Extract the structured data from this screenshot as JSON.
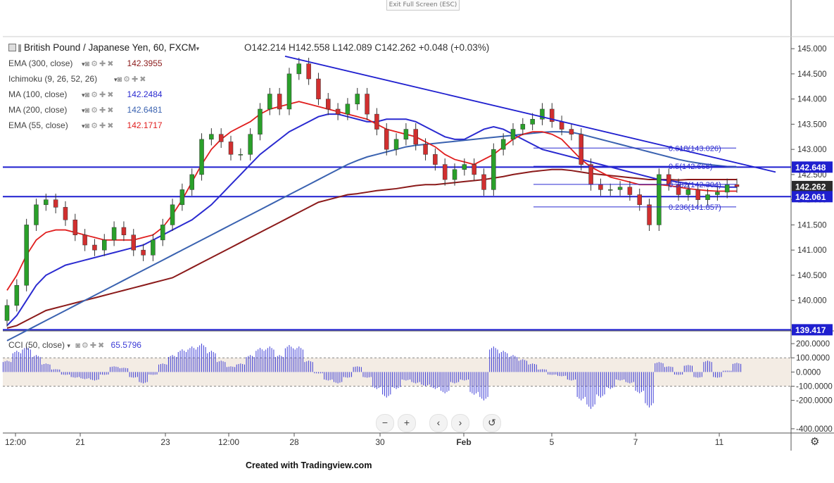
{
  "window": {
    "exit_fullscreen_label": "Exit Full Screen (ESC)"
  },
  "header": {
    "symbol": "British Pound / Japanese Yen, 60, FXCM",
    "ohlc": "O142.214  H142.558  L142.089  C142.262  +0.048 (+0.03%)"
  },
  "indicators": [
    {
      "name": "EMA (300, close)",
      "value": "142.3955",
      "color": "#8b1a1a"
    },
    {
      "name": "Ichimoku (9, 26, 52, 26)",
      "value": "",
      "color": "#999999"
    },
    {
      "name": "MA (100, close)",
      "value": "142.2484",
      "color": "#2a2ad0"
    },
    {
      "name": "MA (200, close)",
      "value": "142.6481",
      "color": "#3a62b0"
    },
    {
      "name": "EMA (55, close)",
      "value": "142.1717",
      "color": "#e01e1e"
    }
  ],
  "cci_indicator": {
    "name": "CCI (50, close)",
    "value": "65.5796",
    "color": "#3b3bd6"
  },
  "chart_data": {
    "type": "candlestick",
    "symbol": "GBPJPY",
    "timeframe": "60",
    "x_labels": [
      "12:00",
      "21",
      "23",
      "12:00",
      "28",
      "30",
      "Feb",
      "5",
      "7",
      "11"
    ],
    "y_ticks": [
      "145.000",
      "144.500",
      "144.000",
      "143.500",
      "143.000",
      "142.500",
      "142.000",
      "141.500",
      "141.000",
      "140.500",
      "140.000"
    ],
    "ylim": [
      139.45,
      145.1
    ],
    "price_labels": [
      {
        "text": "142.648",
        "value": 142.648,
        "color": "#1f1fcf"
      },
      {
        "text": "142.262",
        "value": 142.262,
        "color": "#2c2c2c"
      },
      {
        "text": "142.061",
        "value": 142.061,
        "color": "#1f1fcf"
      },
      {
        "text": "139.417",
        "value": 139.417,
        "color": "#1f1fcf"
      }
    ],
    "horizontal_lines": [
      142.648,
      142.061,
      139.417
    ],
    "fibonacci": [
      {
        "label": "0.618(143.026)",
        "value": 143.026
      },
      {
        "label": "0.5(142.665)",
        "value": 142.665
      },
      {
        "label": "0.382(142.304)",
        "value": 142.304
      },
      {
        "label": "0.236(141.857)",
        "value": 141.857
      }
    ],
    "trendline": {
      "from_price": 144.85,
      "to_price": 142.55
    },
    "close_series": [
      139.9,
      140.3,
      141.5,
      141.9,
      142.0,
      141.85,
      141.6,
      141.3,
      141.1,
      141.0,
      141.2,
      141.45,
      141.3,
      141.0,
      140.9,
      141.2,
      141.5,
      141.9,
      142.2,
      142.5,
      143.2,
      143.3,
      143.15,
      142.9,
      142.9,
      143.3,
      143.8,
      144.1,
      143.8,
      144.5,
      144.7,
      144.4,
      144.0,
      143.8,
      143.7,
      143.9,
      144.1,
      143.7,
      143.4,
      143.0,
      143.2,
      143.4,
      143.1,
      142.9,
      142.7,
      142.4,
      142.6,
      142.7,
      142.5,
      142.2,
      143.0,
      143.2,
      143.4,
      143.5,
      143.6,
      143.8,
      143.55,
      143.4,
      143.3,
      142.7,
      142.3,
      142.2,
      142.2,
      142.25,
      142.1,
      141.9,
      141.5,
      142.5,
      142.3,
      142.1,
      142.2,
      142.0,
      142.1,
      142.15,
      142.3,
      142.26
    ],
    "ema55": [
      140.2,
      140.5,
      140.9,
      141.2,
      141.35,
      141.4,
      141.4,
      141.35,
      141.3,
      141.25,
      141.2,
      141.2,
      141.2,
      141.2,
      141.25,
      141.3,
      141.45,
      141.7,
      142.0,
      142.35,
      142.7,
      143.0,
      143.2,
      143.35,
      143.45,
      143.55,
      143.7,
      143.8,
      143.85,
      143.9,
      143.95,
      143.9,
      143.85,
      143.8,
      143.75,
      143.7,
      143.65,
      143.6,
      143.5,
      143.4,
      143.35,
      143.3,
      143.25,
      143.15,
      143.05,
      142.9,
      142.8,
      142.75,
      142.7,
      142.8,
      142.9,
      143.05,
      143.2,
      143.3,
      143.35,
      143.35,
      143.3,
      143.2,
      143.0,
      142.8,
      142.65,
      142.55,
      142.45,
      142.4,
      142.35,
      142.3,
      142.3,
      142.3,
      142.28,
      142.25,
      142.22,
      142.2,
      142.18,
      142.17,
      142.17,
      142.17
    ],
    "ma100": [
      139.5,
      139.7,
      140.0,
      140.3,
      140.5,
      140.6,
      140.7,
      140.75,
      140.8,
      140.85,
      140.9,
      140.95,
      141.0,
      141.05,
      141.1,
      141.2,
      141.3,
      141.4,
      141.5,
      141.6,
      141.75,
      141.9,
      142.1,
      142.3,
      142.5,
      142.7,
      142.9,
      143.05,
      143.2,
      143.35,
      143.45,
      143.55,
      143.65,
      143.7,
      143.7,
      143.65,
      143.6,
      143.55,
      143.55,
      143.6,
      143.6,
      143.6,
      143.55,
      143.45,
      143.35,
      143.25,
      143.2,
      143.2,
      143.3,
      143.4,
      143.45,
      143.4,
      143.3,
      143.2,
      143.1,
      143.0,
      142.95,
      142.9,
      142.85,
      142.8,
      142.75,
      142.7,
      142.65,
      142.6,
      142.55,
      142.5,
      142.45,
      142.4,
      142.38,
      142.35,
      142.32,
      142.3,
      142.28,
      142.26,
      142.25,
      142.25
    ],
    "ma200": [
      139.2,
      139.3,
      139.4,
      139.5,
      139.6,
      139.7,
      139.8,
      139.9,
      140.0,
      140.1,
      140.2,
      140.3,
      140.4,
      140.5,
      140.6,
      140.7,
      140.8,
      140.9,
      141.0,
      141.1,
      141.2,
      141.3,
      141.4,
      141.5,
      141.6,
      141.7,
      141.8,
      141.9,
      142.0,
      142.1,
      142.2,
      142.3,
      142.4,
      142.5,
      142.6,
      142.7,
      142.78,
      142.85,
      142.9,
      142.95,
      143.0,
      143.05,
      143.08,
      143.1,
      143.12,
      143.14,
      143.16,
      143.18,
      143.2,
      143.22,
      143.24,
      143.26,
      143.28,
      143.3,
      143.32,
      143.34,
      143.35,
      143.35,
      143.34,
      143.3,
      143.25,
      143.2,
      143.15,
      143.1,
      143.05,
      143.0,
      142.95,
      142.9,
      142.85,
      142.8,
      142.76,
      142.73,
      142.7,
      142.68,
      142.66,
      142.65
    ],
    "ema300": [
      139.45,
      139.5,
      139.6,
      139.7,
      139.8,
      139.85,
      139.9,
      139.95,
      140.0,
      140.05,
      140.1,
      140.15,
      140.2,
      140.25,
      140.3,
      140.35,
      140.4,
      140.45,
      140.55,
      140.65,
      140.75,
      140.85,
      140.95,
      141.05,
      141.15,
      141.25,
      141.35,
      141.45,
      141.55,
      141.65,
      141.75,
      141.85,
      141.95,
      142.0,
      142.05,
      142.1,
      142.12,
      142.15,
      142.18,
      142.2,
      142.22,
      142.25,
      142.28,
      142.3,
      142.3,
      142.32,
      142.34,
      142.36,
      142.38,
      142.4,
      142.43,
      142.46,
      142.5,
      142.53,
      142.56,
      142.58,
      142.6,
      142.6,
      142.58,
      142.55,
      142.52,
      142.5,
      142.48,
      142.46,
      142.44,
      142.42,
      142.4,
      142.4,
      142.4,
      142.39,
      142.4,
      142.4,
      142.4,
      142.4,
      142.4,
      142.4
    ],
    "cci": {
      "y_ticks": [
        "200.0000",
        "100.0000",
        "0.0000",
        "-100.0000",
        "-200.0000",
        "-400.0000"
      ],
      "band": [
        100,
        -100
      ],
      "values": [
        80,
        150,
        180,
        120,
        60,
        20,
        -20,
        -40,
        -50,
        -60,
        -20,
        40,
        30,
        -40,
        -80,
        -20,
        60,
        120,
        160,
        180,
        200,
        150,
        80,
        40,
        60,
        120,
        170,
        180,
        120,
        190,
        180,
        80,
        -10,
        -60,
        -80,
        -40,
        40,
        -40,
        -120,
        -180,
        -120,
        -60,
        -80,
        -100,
        -120,
        -150,
        -80,
        -60,
        -160,
        -200,
        180,
        150,
        120,
        90,
        60,
        20,
        -20,
        -30,
        -60,
        -200,
        -260,
        -180,
        -120,
        -60,
        -80,
        -150,
        -250,
        70,
        40,
        -20,
        50,
        -40,
        80,
        -40,
        10,
        65
      ]
    }
  },
  "nav": {
    "zoom_out": "−",
    "zoom_in": "+",
    "prev": "‹",
    "next": "›",
    "reset": "↺"
  },
  "footer": {
    "credit": "Created with Tradingview.com"
  }
}
